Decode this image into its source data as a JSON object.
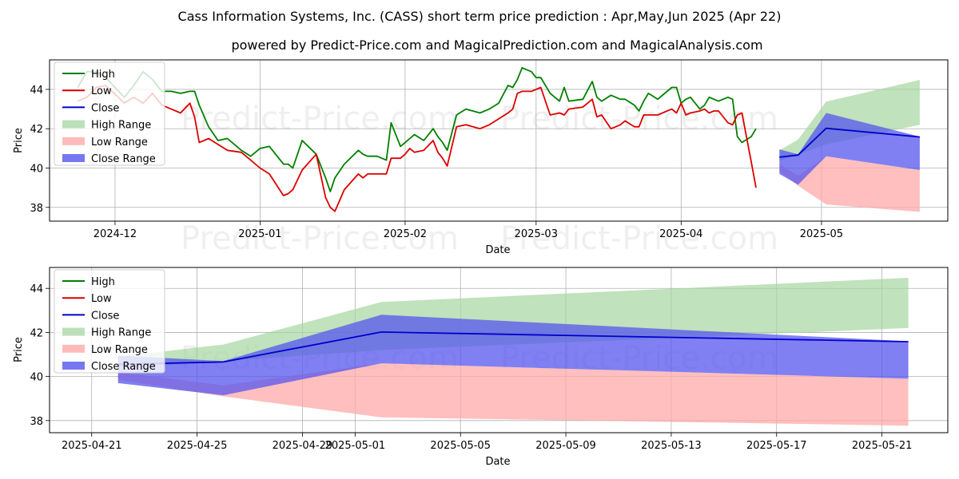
{
  "page": {
    "title": "Cass Information Systems, Inc. (CASS) short term price prediction : Apr,May,Jun 2025 (Apr 22)",
    "subtitle": "powered by Predict-Price.com and MagicalPrediction.com and MagicalAnalysis.com",
    "watermark": "Predict-Price.com"
  },
  "chart_data": [
    {
      "type": "line",
      "xlabel": "Date",
      "ylabel": "Price",
      "xlim": [
        "2024-11-17",
        "2025-05-28"
      ],
      "ylim": [
        37.3,
        45.5
      ],
      "yticks": [
        38,
        40,
        42,
        44
      ],
      "xticks": [
        {
          "date": "2024-12-01",
          "label": "2024-12"
        },
        {
          "date": "2025-01-01",
          "label": "2025-01"
        },
        {
          "date": "2025-02-01",
          "label": "2025-02"
        },
        {
          "date": "2025-03-01",
          "label": "2025-03"
        },
        {
          "date": "2025-04-01",
          "label": "2025-04"
        },
        {
          "date": "2025-05-01",
          "label": "2025-05"
        }
      ],
      "grid": true,
      "legend_position": "top-left",
      "legend": [
        "High",
        "Low",
        "Close",
        "High Range",
        "Low Range",
        "Close Range"
      ],
      "colors": {
        "high": "#008000",
        "low": "#dd0000",
        "close": "#0000cc",
        "high_range": "#a5d6a0",
        "low_range": "#ffaaaa",
        "close_range": "#5555ee"
      },
      "series": [
        {
          "name": "High",
          "x": [
            "2024-11-23",
            "2024-11-25",
            "2024-11-27",
            "2024-11-29",
            "2024-12-03",
            "2024-12-05",
            "2024-12-07",
            "2024-12-09",
            "2024-12-11",
            "2024-12-13",
            "2024-12-15",
            "2024-12-17",
            "2024-12-18",
            "2024-12-19",
            "2024-12-21",
            "2024-12-23",
            "2024-12-25",
            "2024-12-28",
            "2024-12-30",
            "2025-01-01",
            "2025-01-03",
            "2025-01-06",
            "2025-01-07",
            "2025-01-08",
            "2025-01-10",
            "2025-01-13",
            "2025-01-15",
            "2025-01-16",
            "2025-01-17",
            "2025-01-19",
            "2025-01-22",
            "2025-01-23",
            "2025-01-24",
            "2025-01-26",
            "2025-01-28",
            "2025-01-29",
            "2025-01-31",
            "2025-02-01",
            "2025-02-02",
            "2025-02-03",
            "2025-02-05",
            "2025-02-07",
            "2025-02-08",
            "2025-02-09",
            "2025-02-10",
            "2025-02-12",
            "2025-02-14",
            "2025-02-17",
            "2025-02-19",
            "2025-02-21",
            "2025-02-23",
            "2025-02-24",
            "2025-02-25",
            "2025-02-26",
            "2025-02-28",
            "2025-03-01",
            "2025-03-02",
            "2025-03-04",
            "2025-03-06",
            "2025-03-07",
            "2025-03-08",
            "2025-03-11",
            "2025-03-13",
            "2025-03-14",
            "2025-03-15",
            "2025-03-17",
            "2025-03-18",
            "2025-03-19",
            "2025-03-20",
            "2025-03-22",
            "2025-03-23",
            "2025-03-24",
            "2025-03-25",
            "2025-03-27",
            "2025-03-30",
            "2025-03-31",
            "2025-04-01",
            "2025-04-02",
            "2025-04-03",
            "2025-04-05",
            "2025-04-06",
            "2025-04-07",
            "2025-04-08",
            "2025-04-09",
            "2025-04-11",
            "2025-04-12",
            "2025-04-13",
            "2025-04-14",
            "2025-04-16",
            "2025-04-17"
          ],
          "values": [
            44.1,
            44.9,
            44.9,
            44.6,
            43.6,
            44.2,
            44.9,
            44.5,
            43.9,
            43.9,
            43.8,
            43.9,
            43.9,
            43.2,
            42.1,
            41.4,
            41.5,
            40.9,
            40.6,
            41.0,
            41.1,
            40.2,
            40.2,
            40.0,
            41.4,
            40.7,
            39.5,
            38.8,
            39.5,
            40.2,
            40.9,
            40.7,
            40.6,
            40.6,
            40.4,
            42.3,
            41.1,
            41.3,
            41.5,
            41.7,
            41.4,
            42.0,
            41.6,
            41.3,
            40.9,
            42.7,
            43.0,
            42.8,
            43.0,
            43.3,
            44.2,
            44.1,
            44.5,
            45.1,
            44.9,
            44.6,
            44.6,
            43.8,
            43.4,
            44.1,
            43.4,
            43.5,
            44.4,
            43.6,
            43.4,
            43.7,
            43.6,
            43.5,
            43.5,
            43.2,
            42.9,
            43.4,
            43.8,
            43.5,
            44.1,
            44.1,
            43.3,
            43.5,
            43.6,
            43.0,
            43.2,
            43.6,
            43.5,
            43.4,
            43.6,
            43.5,
            41.6,
            41.3,
            41.6,
            42.0
          ]
        },
        {
          "name": "Low",
          "x": [
            "2024-11-23",
            "2024-11-25",
            "2024-11-27",
            "2024-11-29",
            "2024-12-03",
            "2024-12-05",
            "2024-12-07",
            "2024-12-09",
            "2024-12-11",
            "2024-12-13",
            "2024-12-15",
            "2024-12-17",
            "2024-12-18",
            "2024-12-19",
            "2024-12-21",
            "2024-12-23",
            "2024-12-25",
            "2024-12-28",
            "2024-12-30",
            "2025-01-01",
            "2025-01-03",
            "2025-01-06",
            "2025-01-07",
            "2025-01-08",
            "2025-01-10",
            "2025-01-13",
            "2025-01-15",
            "2025-01-16",
            "2025-01-17",
            "2025-01-19",
            "2025-01-22",
            "2025-01-23",
            "2025-01-24",
            "2025-01-26",
            "2025-01-28",
            "2025-01-29",
            "2025-01-31",
            "2025-02-01",
            "2025-02-02",
            "2025-02-03",
            "2025-02-05",
            "2025-02-07",
            "2025-02-08",
            "2025-02-09",
            "2025-02-10",
            "2025-02-12",
            "2025-02-14",
            "2025-02-17",
            "2025-02-19",
            "2025-02-21",
            "2025-02-23",
            "2025-02-24",
            "2025-02-25",
            "2025-02-26",
            "2025-02-28",
            "2025-03-01",
            "2025-03-02",
            "2025-03-04",
            "2025-03-06",
            "2025-03-07",
            "2025-03-08",
            "2025-03-11",
            "2025-03-13",
            "2025-03-14",
            "2025-03-15",
            "2025-03-17",
            "2025-03-18",
            "2025-03-19",
            "2025-03-20",
            "2025-03-22",
            "2025-03-23",
            "2025-03-24",
            "2025-03-25",
            "2025-03-27",
            "2025-03-30",
            "2025-03-31",
            "2025-04-01",
            "2025-04-02",
            "2025-04-03",
            "2025-04-05",
            "2025-04-06",
            "2025-04-07",
            "2025-04-08",
            "2025-04-09",
            "2025-04-11",
            "2025-04-12",
            "2025-04-13",
            "2025-04-14",
            "2025-04-16",
            "2025-04-17"
          ],
          "values": [
            43.4,
            43.6,
            44.1,
            44.2,
            43.3,
            43.6,
            43.3,
            43.8,
            43.2,
            43.0,
            42.8,
            43.3,
            42.6,
            41.3,
            41.5,
            41.2,
            40.9,
            40.8,
            40.4,
            40.0,
            39.7,
            38.6,
            38.7,
            38.9,
            39.9,
            40.7,
            38.5,
            38.0,
            37.8,
            38.9,
            39.7,
            39.5,
            39.7,
            39.7,
            39.7,
            40.5,
            40.5,
            40.7,
            41.0,
            40.8,
            40.9,
            41.4,
            40.8,
            40.5,
            40.1,
            42.1,
            42.2,
            42.0,
            42.2,
            42.5,
            42.8,
            43.0,
            43.8,
            43.9,
            43.9,
            44.0,
            44.1,
            42.7,
            42.8,
            42.7,
            43.0,
            43.1,
            43.5,
            42.6,
            42.7,
            42.0,
            42.1,
            42.2,
            42.4,
            42.1,
            42.1,
            42.7,
            42.7,
            42.7,
            43.0,
            42.8,
            43.3,
            42.7,
            42.8,
            42.9,
            43.0,
            42.8,
            42.9,
            42.9,
            42.3,
            42.2,
            42.7,
            42.8,
            40.3,
            39.0
          ]
        },
        {
          "name": "Close",
          "x": [
            "2025-04-22",
            "2025-04-26",
            "2025-05-02",
            "2025-05-22"
          ],
          "values": [
            40.55,
            40.66,
            42.02,
            41.58
          ]
        }
      ]
    },
    {
      "type": "area",
      "xlabel": "Date",
      "ylabel": "Price",
      "xlim": [
        "2025-04-19.4",
        "2025-05-23.5"
      ],
      "ylim": [
        37.45,
        44.95
      ],
      "yticks": [
        38,
        40,
        42,
        44
      ],
      "xticks": [
        {
          "date": "2025-04-21",
          "label": "2025-04-21"
        },
        {
          "date": "2025-04-25",
          "label": "2025-04-25"
        },
        {
          "date": "2025-04-29",
          "label": "2025-04-29"
        },
        {
          "date": "2025-05-01",
          "label": "2025-05-01"
        },
        {
          "date": "2025-05-05",
          "label": "2025-05-05"
        },
        {
          "date": "2025-05-09",
          "label": "2025-05-09"
        },
        {
          "date": "2025-05-13",
          "label": "2025-05-13"
        },
        {
          "date": "2025-05-17",
          "label": "2025-05-17"
        },
        {
          "date": "2025-05-21",
          "label": "2025-05-21"
        }
      ],
      "grid": true,
      "legend_position": "top-left",
      "legend": [
        "High",
        "Low",
        "Close",
        "High Range",
        "Low Range",
        "Close Range"
      ],
      "colors": {
        "high": "#008000",
        "low": "#dd0000",
        "close": "#0000cc",
        "high_range": "#a5d6a0",
        "low_range": "#ffaaaa",
        "close_range": "#5555ee"
      },
      "series": [
        {
          "name": "High Range",
          "x": [
            "2025-04-22",
            "2025-04-26",
            "2025-05-02",
            "2025-05-22"
          ],
          "upper": [
            40.9,
            41.45,
            43.38,
            44.48
          ],
          "lower": [
            40.35,
            40.7,
            41.2,
            42.2
          ]
        },
        {
          "name": "Low Range",
          "x": [
            "2025-04-22",
            "2025-04-26",
            "2025-05-02",
            "2025-05-22"
          ],
          "upper": [
            40.2,
            39.6,
            40.6,
            39.9
          ],
          "lower": [
            39.85,
            39.1,
            38.15,
            37.77
          ]
        },
        {
          "name": "Close Range",
          "x": [
            "2025-04-22",
            "2025-04-26",
            "2025-05-02",
            "2025-05-22"
          ],
          "upper": [
            40.95,
            40.7,
            42.8,
            41.6
          ],
          "lower": [
            39.7,
            39.15,
            40.6,
            39.9
          ]
        },
        {
          "name": "Close",
          "x": [
            "2025-04-22",
            "2025-04-26",
            "2025-05-02",
            "2025-05-22"
          ],
          "values": [
            40.55,
            40.66,
            42.02,
            41.58
          ]
        }
      ]
    }
  ]
}
